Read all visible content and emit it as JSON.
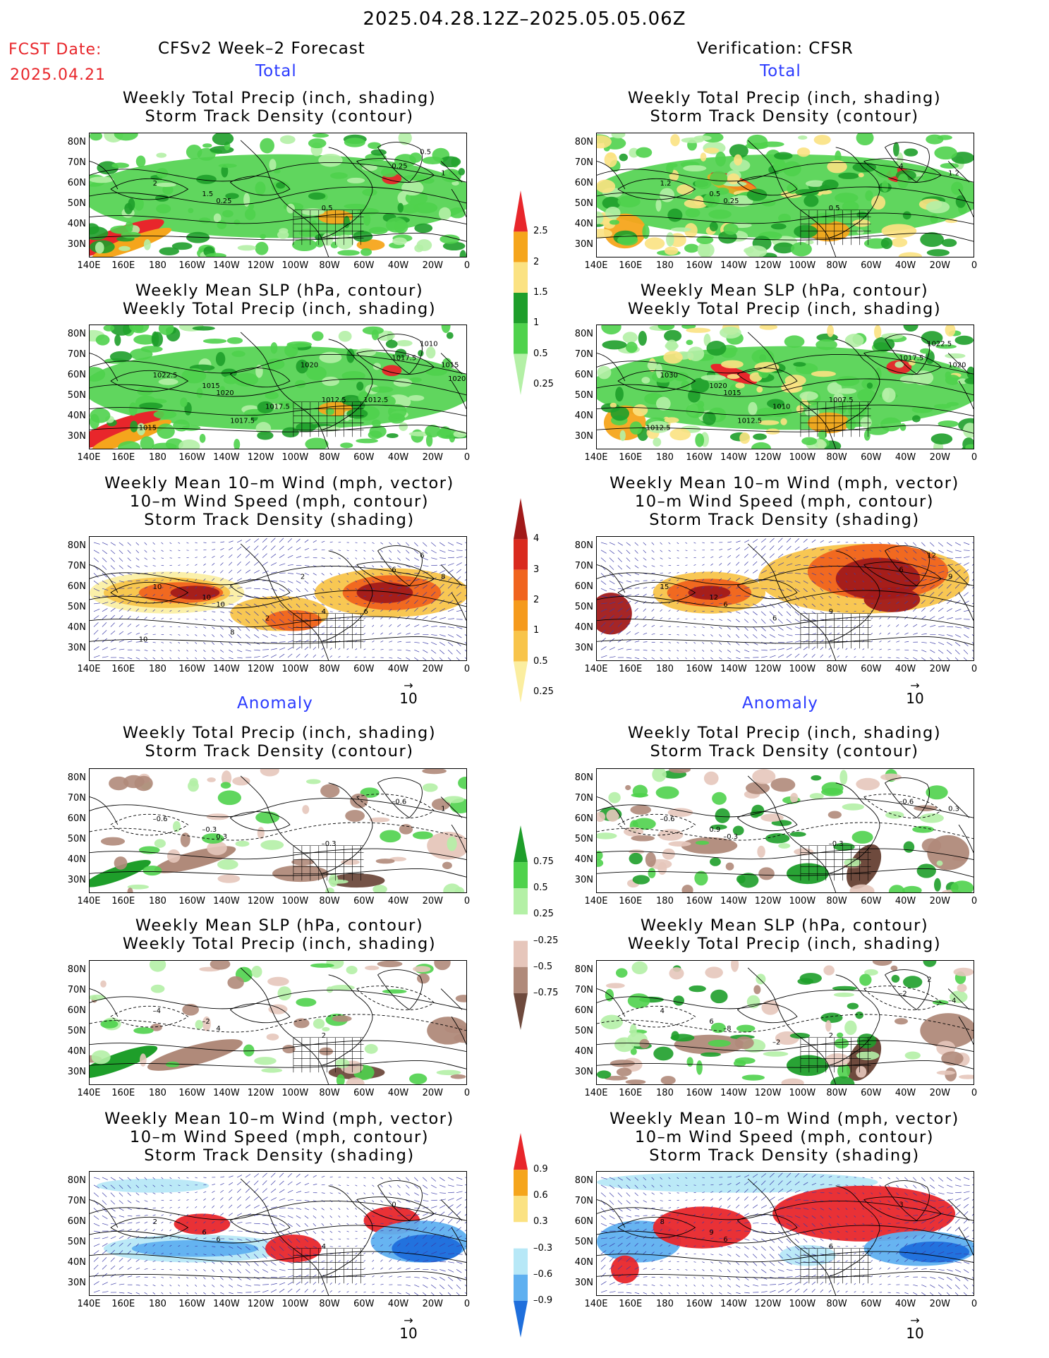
{
  "header": {
    "date_range": "2025.04.28.12Z–2025.05.05.06Z",
    "fcst_label": "FCST Date:",
    "fcst_date": "2025.04.21",
    "left_model": "CFSv2 Week–2 Forecast",
    "right_model": "Verification: CFSR",
    "total": "Total",
    "anomaly": "Anomaly"
  },
  "titles": {
    "precip_storm": "Weekly Total Precip (inch, shading)\nStorm Track Density (contour)",
    "slp_precip": "Weekly Mean SLP (hPa, contour)\nWeekly Total Precip (inch, shading)",
    "wind_storm": "Weekly Mean 10–m Wind (mph, vector)\n10–m Wind Speed (mph, contour)\nStorm Track Density (shading)"
  },
  "axes": {
    "lat": [
      "80N",
      "70N",
      "60N",
      "50N",
      "40N",
      "30N"
    ],
    "lon": [
      "140E",
      "160E",
      "180",
      "160W",
      "140W",
      "120W",
      "100W",
      "80W",
      "60W",
      "40W",
      "20W",
      "0"
    ]
  },
  "vector_ref": "10",
  "colorbars": {
    "precip_total": {
      "labels": [
        "2.5",
        "2",
        "1.5",
        "1",
        "0.5",
        "0.25"
      ],
      "colors": [
        "#e8262b",
        "#f5a51c",
        "#fbe282",
        "#1e9e2a",
        "#4fd24c",
        "#b4f0a6"
      ]
    },
    "storm_total": {
      "labels": [
        "4",
        "3",
        "2",
        "1",
        "0.5",
        "0.25"
      ],
      "colors": [
        "#a11a1a",
        "#d92a1e",
        "#f0641e",
        "#f59a1c",
        "#f8c44a",
        "#fbeea0"
      ]
    },
    "precip_anom": {
      "labels": [
        "0.75",
        "0.5",
        "0.25",
        "–0.25",
        "–0.5",
        "–0.75"
      ],
      "colors": [
        "#1e9e2a",
        "#4fd24c",
        "#b4f0a6",
        "#ffffff",
        "#e6c6bb",
        "#b08a7a",
        "#6e4a3d"
      ]
    },
    "storm_anom": {
      "labels": [
        "0.9",
        "0.6",
        "0.3",
        "–0.3",
        "–0.6",
        "–0.9"
      ],
      "colors": [
        "#e8262b",
        "#f5a51c",
        "#fbe282",
        "#ffffff",
        "#b7e8f7",
        "#5fb0f0",
        "#1f6fdc"
      ]
    }
  },
  "contour_labels": {
    "p1L": [
      "2",
      "1.5",
      "0.25",
      "0.5",
      "0.25",
      "1",
      "0.5"
    ],
    "p1R": [
      "1.2",
      "0.5",
      "0.25",
      "0.5",
      "4",
      "1.2"
    ],
    "p2L": [
      "1022.5",
      "1015",
      "1020",
      "1012.5",
      "1017.5",
      "1015",
      "1010",
      "1017.5",
      "1017.5",
      "1015",
      "1020",
      "1012.5",
      "1020"
    ],
    "p2R": [
      "1030",
      "1020",
      "1015",
      "1007.5",
      "1017.5",
      "1020",
      "1022.5",
      "1010",
      "1012.5",
      "1012.5"
    ],
    "p3L": [
      "10",
      "10",
      "10",
      "4",
      "6",
      "8",
      "6",
      "2",
      "8",
      "10",
      "2",
      "6"
    ],
    "p3R": [
      "15",
      "12",
      "6",
      "9",
      "6",
      "9",
      "12",
      "6"
    ],
    "p4L": [
      "–0.6",
      "–0.3",
      "0.3",
      "–0.3",
      "–0.6",
      "1"
    ],
    "p4R": [
      "–0.6",
      "0.9",
      "–0.3",
      "–0.3",
      "–0.6",
      "0.3"
    ],
    "p5L": [
      "–4",
      "–2",
      "4",
      "2"
    ],
    "p5R": [
      "4",
      "6",
      "–8",
      "2",
      "–2",
      "–4",
      "2",
      "–2"
    ],
    "p6L": [
      "2",
      "6",
      "6",
      "4",
      "0"
    ],
    "p6R": [
      "8",
      "9",
      "6",
      "6",
      "3"
    ]
  }
}
